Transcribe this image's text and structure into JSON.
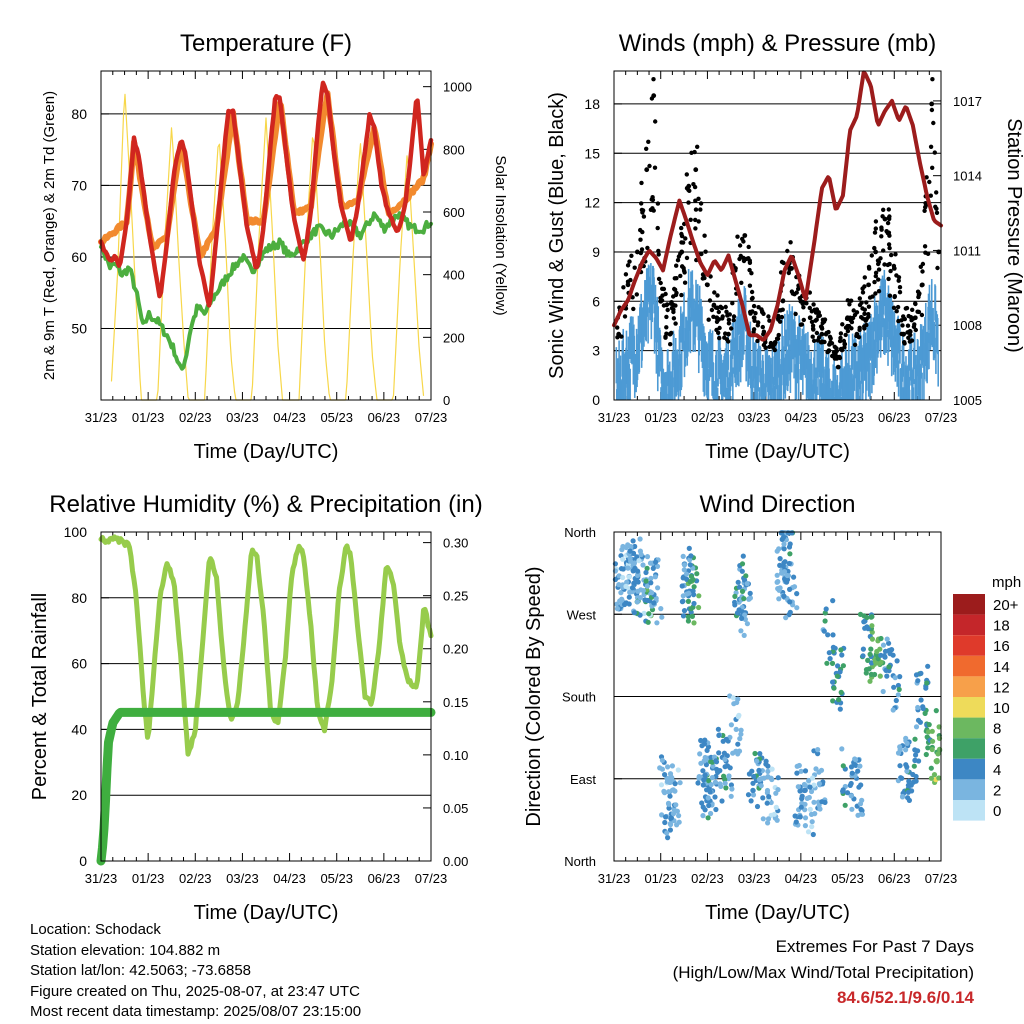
{
  "info": {
    "location": "Location: Schodack",
    "elevation": "Station elevation: 104.882 m",
    "latlon": "Station lat/lon: 42.5063; -73.6858",
    "created": "Figure created on Thu, 2025-08-07, at 23:47 UTC",
    "recent": "Most recent data timestamp: 2025/08/07 23:15:00"
  },
  "extremes": {
    "title": "Extremes For Past 7 Days",
    "subtitle": "(High/Low/Max Wind/Total Precipitation)",
    "values": "84.6/52.1/9.6/0.14",
    "color": "#c8282a"
  },
  "colors": {
    "temp2m": "#d0261f",
    "temp9m": "#f28a2e",
    "dewpoint": "#4cae3f",
    "solar": "#f7d74a",
    "gust": "#000000",
    "wind": "#4d9ad4",
    "pressure": "#9c1c1c",
    "rh": "#97cc4c",
    "rain": "#3fae3f"
  },
  "chart_data": [
    {
      "type": "line",
      "title": "Temperature (F)",
      "xlabel": "Time (Day/UTC)",
      "ylabel": "2m & 9m T (Red, Orange) & 2m Td (Green)",
      "ylabel_right": "Solar Insolation (Yellow)",
      "x_ticks": [
        "31/23",
        "01/23",
        "02/23",
        "03/23",
        "04/23",
        "05/23",
        "06/23",
        "07/23"
      ],
      "ylim": [
        40,
        86
      ],
      "y_ticks": [
        "50",
        "60",
        "70",
        "80"
      ],
      "y2lim": [
        0,
        1050
      ],
      "y2_ticks": [
        "0",
        "200",
        "400",
        "600",
        "800",
        "1000"
      ],
      "grid": true,
      "series": [
        {
          "name": "2m T",
          "x": [
            0,
            0.1,
            0.2,
            0.3,
            0.4,
            0.55,
            0.7,
            0.8,
            0.95,
            1.1,
            1.25,
            1.4,
            1.55,
            1.7,
            1.8,
            1.95,
            2.1,
            2.3,
            2.45,
            2.6,
            2.7,
            2.8,
            2.95,
            3.1,
            3.3,
            3.45,
            3.6,
            3.7,
            3.8,
            3.95,
            4.1,
            4.3,
            4.45,
            4.6,
            4.7,
            4.8,
            4.95,
            5.1,
            5.3,
            5.45,
            5.6,
            5.7,
            5.8,
            5.95,
            6.1,
            6.3,
            6.45,
            6.6,
            6.7,
            6.85,
            7.0
          ],
          "values": [
            62,
            60.5,
            59.5,
            60,
            58.5,
            65,
            76.5,
            74,
            67,
            60,
            54,
            62,
            72,
            76.5,
            74,
            66,
            59,
            53,
            63,
            74,
            80.5,
            80.5,
            72,
            64,
            58,
            64,
            76,
            82.5,
            82,
            73,
            65,
            59.5,
            66,
            78,
            84.5,
            83,
            74,
            67,
            62,
            67,
            75,
            80,
            78,
            70,
            66,
            63.5,
            67,
            76,
            83,
            71,
            76.5
          ]
        },
        {
          "name": "9m T",
          "x": [
            0,
            0.55,
            0.7,
            1.1,
            1.4,
            1.7,
            2.1,
            2.45,
            2.8,
            3.1,
            3.45,
            3.8,
            4.1,
            4.45,
            4.8,
            5.1,
            5.45,
            5.8,
            6.1,
            6.45,
            6.85,
            7.0
          ],
          "values": [
            62,
            65,
            76,
            61,
            63,
            76,
            60,
            64,
            80,
            65,
            65,
            82,
            66,
            67,
            83,
            67,
            68,
            78,
            66,
            68,
            71,
            76
          ]
        },
        {
          "name": "2m Td",
          "x": [
            0,
            0.1,
            0.2,
            0.3,
            0.45,
            0.6,
            0.75,
            0.9,
            1.0,
            1.2,
            1.4,
            1.55,
            1.7,
            1.8,
            1.9,
            2.05,
            2.2,
            2.35,
            2.55,
            2.75,
            3.0,
            3.2,
            3.5,
            3.8,
            4.0,
            4.3,
            4.6,
            4.9,
            5.2,
            5.5,
            5.8,
            6.0,
            6.3,
            6.6,
            6.85,
            7.0
          ],
          "values": [
            62,
            60,
            58.5,
            59,
            57.5,
            58.5,
            55,
            50,
            52,
            51,
            49,
            47,
            44,
            46,
            50,
            53,
            52,
            54,
            56,
            58,
            60,
            58,
            61,
            62,
            60,
            62,
            64,
            63,
            65,
            63,
            66,
            64,
            66,
            64,
            64,
            65
          ]
        },
        {
          "name": "Solar Insolation",
          "axis": "right",
          "x": [
            0.2,
            0.35,
            0.5,
            0.65,
            0.75,
            0.85,
            1.2,
            1.35,
            1.5,
            1.65,
            1.75,
            1.85,
            2.2,
            2.35,
            2.5,
            2.65,
            2.75,
            2.85,
            3.2,
            3.35,
            3.5,
            3.65,
            3.75,
            3.85,
            4.2,
            4.35,
            4.5,
            4.65,
            4.75,
            4.85,
            5.2,
            5.35,
            5.5,
            5.65,
            5.75,
            5.85,
            6.2,
            6.35,
            6.5,
            6.65,
            6.75,
            6.85
          ],
          "values": [
            0,
            400,
            1000,
            600,
            300,
            0,
            0,
            500,
            880,
            450,
            200,
            0,
            0,
            500,
            850,
            480,
            150,
            0,
            0,
            520,
            900,
            500,
            180,
            0,
            0,
            500,
            870,
            470,
            160,
            0,
            0,
            470,
            830,
            430,
            150,
            0,
            0,
            460,
            800,
            420,
            160,
            0
          ]
        }
      ]
    },
    {
      "type": "scatter",
      "title": "Winds (mph) & Pressure (mb)",
      "xlabel": "Time (Day/UTC)",
      "ylabel": "Sonic Wind & Gust (Blue, Black)",
      "ylabel_right": "Station Pressure (Maroon)",
      "x_ticks": [
        "31/23",
        "01/23",
        "02/23",
        "03/23",
        "04/23",
        "05/23",
        "06/23",
        "07/23"
      ],
      "ylim": [
        0,
        20
      ],
      "y_ticks": [
        "0",
        "3",
        "6",
        "9",
        "12",
        "15",
        "18"
      ],
      "y2lim": [
        1005,
        1018.2
      ],
      "y2_ticks": [
        "1005",
        "1008",
        "1011",
        "1014",
        "1017"
      ],
      "grid": true,
      "series": [
        {
          "name": "Gust",
          "x": [
            0.1,
            0.3,
            0.5,
            0.7,
            0.85,
            1.0,
            1.2,
            1.45,
            1.6,
            1.75,
            2.0,
            2.2,
            2.45,
            2.6,
            2.8,
            3.0,
            3.2,
            3.45,
            3.6,
            3.8,
            4.0,
            4.2,
            4.45,
            4.6,
            4.8,
            5.0,
            5.2,
            5.45,
            5.6,
            5.8,
            6.0,
            6.2,
            6.45,
            6.6,
            6.8,
            6.95
          ],
          "values": [
            4,
            7,
            9,
            14,
            18.5,
            6,
            4,
            9,
            13,
            14,
            7,
            5,
            4,
            8,
            10,
            5,
            4,
            3.5,
            7,
            8,
            6,
            5,
            4,
            3,
            2,
            5,
            4,
            7,
            9,
            11,
            8,
            4,
            5,
            7,
            18,
            9
          ]
        },
        {
          "name": "Wind",
          "x": [
            0.1,
            0.3,
            0.5,
            0.7,
            0.85,
            1.0,
            1.2,
            1.45,
            1.6,
            1.75,
            2.0,
            2.2,
            2.45,
            2.6,
            2.8,
            3.0,
            3.2,
            3.45,
            3.6,
            3.8,
            4.0,
            4.2,
            4.45,
            4.6,
            4.8,
            5.0,
            5.2,
            5.45,
            5.6,
            5.8,
            6.0,
            6.2,
            6.45,
            6.6,
            6.8,
            6.95
          ],
          "values": [
            1.5,
            3,
            4,
            6,
            7,
            2,
            1.5,
            4,
            6,
            6,
            3,
            2,
            2,
            4,
            5,
            2,
            1.5,
            1.5,
            3,
            4,
            3,
            2,
            2,
            1,
            0.5,
            2,
            2,
            3,
            5,
            6,
            4,
            2,
            2,
            3,
            6,
            4
          ]
        },
        {
          "name": "Station Pressure",
          "axis": "right",
          "x": [
            0,
            0.15,
            0.3,
            0.45,
            0.6,
            0.75,
            0.9,
            1.05,
            1.2,
            1.4,
            1.55,
            1.7,
            1.85,
            2.0,
            2.15,
            2.3,
            2.45,
            2.6,
            2.75,
            2.9,
            3.05,
            3.2,
            3.35,
            3.5,
            3.65,
            3.8,
            3.95,
            4.1,
            4.3,
            4.45,
            4.6,
            4.75,
            4.9,
            5.05,
            5.2,
            5.35,
            5.5,
            5.65,
            5.8,
            5.95,
            6.1,
            6.25,
            6.4,
            6.55,
            6.7,
            6.85,
            7.0
          ],
          "values": [
            1008,
            1008.6,
            1009,
            1009.8,
            1010.5,
            1011,
            1010.7,
            1010.2,
            1011.5,
            1013,
            1012.2,
            1011.3,
            1010.5,
            1010,
            1010.6,
            1010.2,
            1010.8,
            1009.8,
            1008.8,
            1007.6,
            1007.6,
            1007.4,
            1007.8,
            1008.8,
            1010.2,
            1010.8,
            1010,
            1009,
            1011.5,
            1013.5,
            1014,
            1012.6,
            1013.2,
            1015.8,
            1016.4,
            1018.2,
            1017.6,
            1016,
            1016.6,
            1017,
            1016.2,
            1016.8,
            1016,
            1014.5,
            1013.2,
            1012.2,
            1012
          ]
        }
      ]
    },
    {
      "type": "line",
      "title": "Relative Humidity (%) & Precipitation (in)",
      "xlabel": "Time (Day/UTC)",
      "ylabel": "Percent & Total Rainfall",
      "x_ticks": [
        "31/23",
        "01/23",
        "02/23",
        "03/23",
        "04/23",
        "05/23",
        "06/23",
        "07/23"
      ],
      "ylim": [
        0,
        100
      ],
      "y_ticks": [
        "0",
        "20",
        "40",
        "60",
        "80",
        "100"
      ],
      "y2lim": [
        0,
        0.31
      ],
      "y2_ticks": [
        "0.00",
        "0.05",
        "0.10",
        "0.15",
        "0.20",
        "0.25",
        "0.30"
      ],
      "grid": true,
      "series": [
        {
          "name": "Relative Humidity",
          "x": [
            0,
            0.15,
            0.3,
            0.45,
            0.6,
            0.75,
            0.9,
            1.0,
            1.1,
            1.25,
            1.4,
            1.55,
            1.7,
            1.85,
            2.0,
            2.15,
            2.3,
            2.45,
            2.6,
            2.75,
            2.9,
            3.05,
            3.2,
            3.3,
            3.45,
            3.6,
            3.75,
            3.9,
            4.05,
            4.2,
            4.3,
            4.45,
            4.6,
            4.75,
            4.9,
            5.05,
            5.2,
            5.3,
            5.45,
            5.6,
            5.75,
            5.9,
            6.05,
            6.2,
            6.35,
            6.5,
            6.7,
            6.85,
            7.0
          ],
          "values": [
            98,
            97,
            98,
            97,
            96,
            80,
            50,
            36,
            55,
            80,
            91,
            85,
            60,
            32,
            40,
            65,
            93,
            86,
            60,
            42,
            48,
            70,
            95,
            93,
            75,
            45,
            42,
            60,
            88,
            96,
            93,
            72,
            45,
            40,
            55,
            82,
            96,
            93,
            70,
            50,
            48,
            65,
            90,
            85,
            65,
            55,
            52,
            78,
            68
          ]
        },
        {
          "name": "Precipitation",
          "axis": "right",
          "x": [
            0,
            0.05,
            0.1,
            0.15,
            0.25,
            0.4,
            0.6,
            1.0,
            2.0,
            3.0,
            4.0,
            5.0,
            6.0,
            7.0
          ],
          "values": [
            0,
            0.02,
            0.06,
            0.11,
            0.13,
            0.14,
            0.14,
            0.14,
            0.14,
            0.14,
            0.14,
            0.14,
            0.14,
            0.14
          ]
        }
      ]
    },
    {
      "type": "scatter",
      "title": "Wind Direction",
      "xlabel": "Time (Day/UTC)",
      "ylabel": "Direction (Colored By Speed)",
      "x_ticks": [
        "31/23",
        "01/23",
        "02/23",
        "03/23",
        "04/23",
        "05/23",
        "06/23",
        "07/23"
      ],
      "y_ticks": [
        "North",
        "West",
        "South",
        "East",
        "North"
      ],
      "ylim": [
        0,
        360
      ],
      "legend": {
        "title": "mph",
        "labels": [
          "20+",
          "18",
          "16",
          "14",
          "12",
          "10",
          "8",
          "6",
          "4",
          "2",
          "0"
        ],
        "colors": [
          "#9c1c1c",
          "#c4262a",
          "#df3a2b",
          "#f06a2e",
          "#f7a04a",
          "#eedb5a",
          "#6cb860",
          "#3ea167",
          "#3d87c4",
          "#7ab5e0",
          "#bde3f5"
        ],
        "placement": "right"
      },
      "series": [
        {
          "name": "Direction",
          "x": [
            0.1,
            0.2,
            0.3,
            0.4,
            0.5,
            0.6,
            0.7,
            0.8,
            0.9,
            1.1,
            1.2,
            1.3,
            1.5,
            1.6,
            1.7,
            1.9,
            2.0,
            2.1,
            2.3,
            2.4,
            2.6,
            2.7,
            2.8,
            3.0,
            3.2,
            3.4,
            3.6,
            3.7,
            3.8,
            4.0,
            4.2,
            4.4,
            4.6,
            4.8,
            5.0,
            5.2,
            5.4,
            5.6,
            5.8,
            6.0,
            6.2,
            6.4,
            6.6,
            6.8,
            6.9
          ],
          "values": [
            310,
            300,
            315,
            305,
            320,
            300,
            290,
            310,
            295,
            80,
            60,
            70,
            310,
            300,
            290,
            100,
            80,
            90,
            110,
            100,
            150,
            300,
            280,
            90,
            80,
            70,
            320,
            340,
            300,
            70,
            60,
            90,
            250,
            200,
            90,
            80,
            240,
            230,
            220,
            200,
            100,
            110,
            180,
            130,
            120
          ],
          "speed": [
            2,
            3,
            2,
            4,
            3,
            2,
            6,
            3,
            2,
            2,
            3,
            2,
            3,
            4,
            6,
            3,
            4,
            3,
            4,
            3,
            2,
            4,
            3,
            4,
            3,
            2,
            3,
            4,
            3,
            3,
            2,
            3,
            4,
            5,
            4,
            3,
            5,
            7,
            4,
            4,
            3,
            5,
            4,
            6,
            8
          ]
        }
      ]
    }
  ]
}
